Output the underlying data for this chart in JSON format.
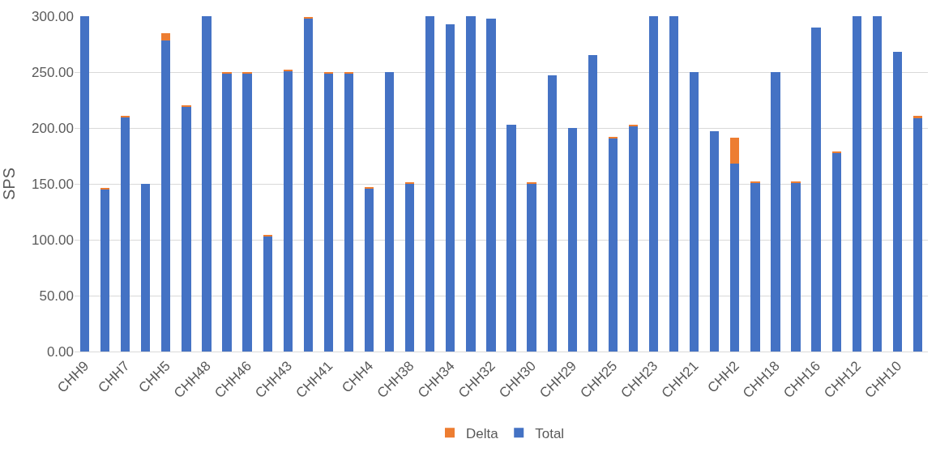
{
  "chart_data": {
    "type": "bar",
    "stacked": true,
    "ylabel": "SPS",
    "categories": [
      "CHH9",
      null,
      "CHH7",
      null,
      "CHH5",
      null,
      "CHH48",
      null,
      "CHH46",
      null,
      "CHH43",
      null,
      "CHH41",
      null,
      "CHH4",
      null,
      "CHH38",
      null,
      "CHH34",
      null,
      "CHH32",
      null,
      "CHH30",
      null,
      "CHH29",
      null,
      "CHH25",
      null,
      "CHH23",
      null,
      "CHH21",
      null,
      "CHH2",
      null,
      "CHH18",
      null,
      "CHH16",
      null,
      "CHH12",
      null,
      "CHH10",
      null
    ],
    "series": [
      {
        "name": "Total",
        "color": "#4472c4",
        "values": [
          300,
          145,
          210,
          150,
          278,
          219,
          300,
          249,
          249,
          103,
          251,
          298,
          249,
          249,
          146,
          250,
          150,
          300,
          293,
          300,
          298,
          203,
          150,
          247,
          200,
          265,
          191,
          202,
          300,
          300,
          250,
          197,
          168,
          151,
          250,
          151,
          290,
          178,
          300,
          300,
          268,
          209
        ]
      },
      {
        "name": "Delta",
        "color": "#ed7d31",
        "values": [
          0,
          1,
          1,
          0,
          7,
          1,
          0,
          1,
          1,
          1,
          1,
          1.5,
          1,
          1,
          1,
          0,
          1,
          0,
          0,
          0,
          0,
          0,
          1,
          0,
          0,
          0,
          1,
          1,
          0,
          0,
          0,
          0,
          23,
          1,
          0,
          1,
          0,
          1,
          0,
          0,
          0,
          2
        ]
      }
    ],
    "ylim": [
      0,
      300
    ],
    "yticks": [
      {
        "value": 0,
        "label": "0.00"
      },
      {
        "value": 50,
        "label": "50.00"
      },
      {
        "value": 100,
        "label": "100.00"
      },
      {
        "value": 150,
        "label": "150.00"
      },
      {
        "value": 200,
        "label": "200.00"
      },
      {
        "value": 250,
        "label": "250.00"
      },
      {
        "value": 300,
        "label": "300.00"
      }
    ],
    "grid": "y",
    "legend": "bottom"
  }
}
